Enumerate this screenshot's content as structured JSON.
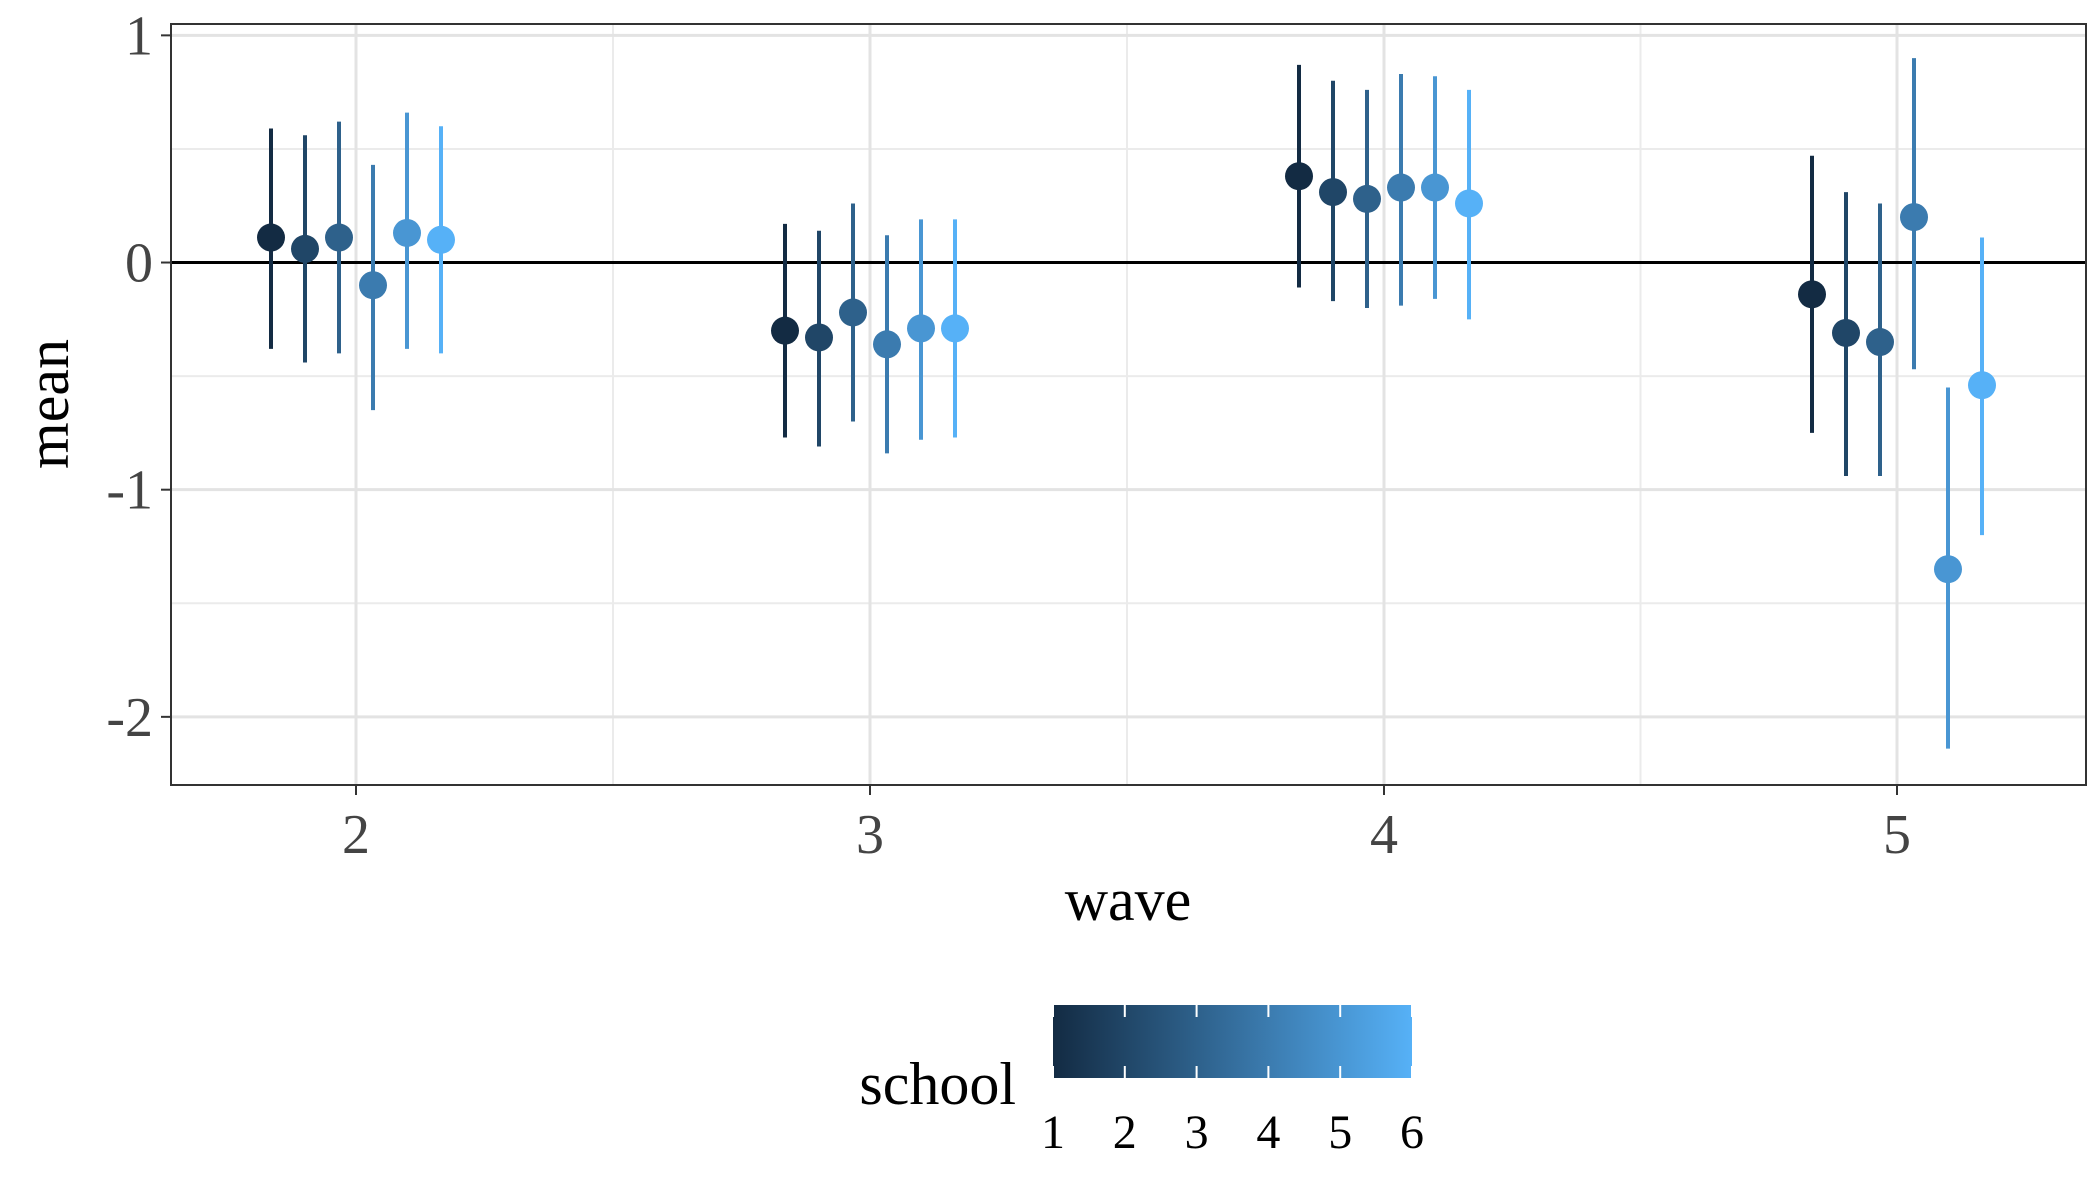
{
  "chart_data": {
    "type": "scatter",
    "subtype": "pointrange",
    "xlabel": "wave",
    "ylabel": "mean",
    "x_ticks": [
      "2",
      "3",
      "4",
      "5"
    ],
    "y_ticks": [
      "1",
      "0",
      "-1",
      "-2"
    ],
    "ylim": [
      -2.3,
      1.05
    ],
    "reference_line_y": 0,
    "grid": true,
    "legend": {
      "title": "school",
      "type": "colorbar",
      "position": "bottom",
      "labels": [
        "1",
        "2",
        "3",
        "4",
        "5",
        "6"
      ],
      "color_low": "#132B43",
      "color_high": "#56B1F7"
    },
    "series": [
      {
        "school": 1,
        "points": [
          {
            "wave": 2,
            "mean": 0.11,
            "lower": -0.38,
            "upper": 0.59
          },
          {
            "wave": 3,
            "mean": -0.3,
            "lower": -0.77,
            "upper": 0.17
          },
          {
            "wave": 4,
            "mean": 0.38,
            "lower": -0.11,
            "upper": 0.87
          },
          {
            "wave": 5,
            "mean": -0.14,
            "lower": -0.75,
            "upper": 0.47
          }
        ]
      },
      {
        "school": 2,
        "points": [
          {
            "wave": 2,
            "mean": 0.06,
            "lower": -0.44,
            "upper": 0.56
          },
          {
            "wave": 3,
            "mean": -0.33,
            "lower": -0.81,
            "upper": 0.14
          },
          {
            "wave": 4,
            "mean": 0.31,
            "lower": -0.17,
            "upper": 0.8
          },
          {
            "wave": 5,
            "mean": -0.31,
            "lower": -0.94,
            "upper": 0.31
          }
        ]
      },
      {
        "school": 3,
        "points": [
          {
            "wave": 2,
            "mean": 0.11,
            "lower": -0.4,
            "upper": 0.62
          },
          {
            "wave": 3,
            "mean": -0.22,
            "lower": -0.7,
            "upper": 0.26
          },
          {
            "wave": 4,
            "mean": 0.28,
            "lower": -0.2,
            "upper": 0.76
          },
          {
            "wave": 5,
            "mean": -0.35,
            "lower": -0.94,
            "upper": 0.26
          }
        ]
      },
      {
        "school": 4,
        "points": [
          {
            "wave": 2,
            "mean": -0.1,
            "lower": -0.65,
            "upper": 0.43
          },
          {
            "wave": 3,
            "mean": -0.36,
            "lower": -0.84,
            "upper": 0.12
          },
          {
            "wave": 4,
            "mean": 0.33,
            "lower": -0.19,
            "upper": 0.83
          },
          {
            "wave": 5,
            "mean": 0.2,
            "lower": -0.47,
            "upper": 0.9
          }
        ]
      },
      {
        "school": 5,
        "points": [
          {
            "wave": 2,
            "mean": 0.13,
            "lower": -0.38,
            "upper": 0.66
          },
          {
            "wave": 3,
            "mean": -0.29,
            "lower": -0.78,
            "upper": 0.19
          },
          {
            "wave": 4,
            "mean": 0.33,
            "lower": -0.16,
            "upper": 0.82
          },
          {
            "wave": 5,
            "mean": -1.35,
            "lower": -2.14,
            "upper": -0.55
          }
        ]
      },
      {
        "school": 6,
        "points": [
          {
            "wave": 2,
            "mean": 0.1,
            "lower": -0.4,
            "upper": 0.6
          },
          {
            "wave": 3,
            "mean": -0.29,
            "lower": -0.77,
            "upper": 0.19
          },
          {
            "wave": 4,
            "mean": 0.26,
            "lower": -0.25,
            "upper": 0.76
          },
          {
            "wave": 5,
            "mean": -0.54,
            "lower": -1.2,
            "upper": 0.11
          }
        ]
      }
    ]
  }
}
